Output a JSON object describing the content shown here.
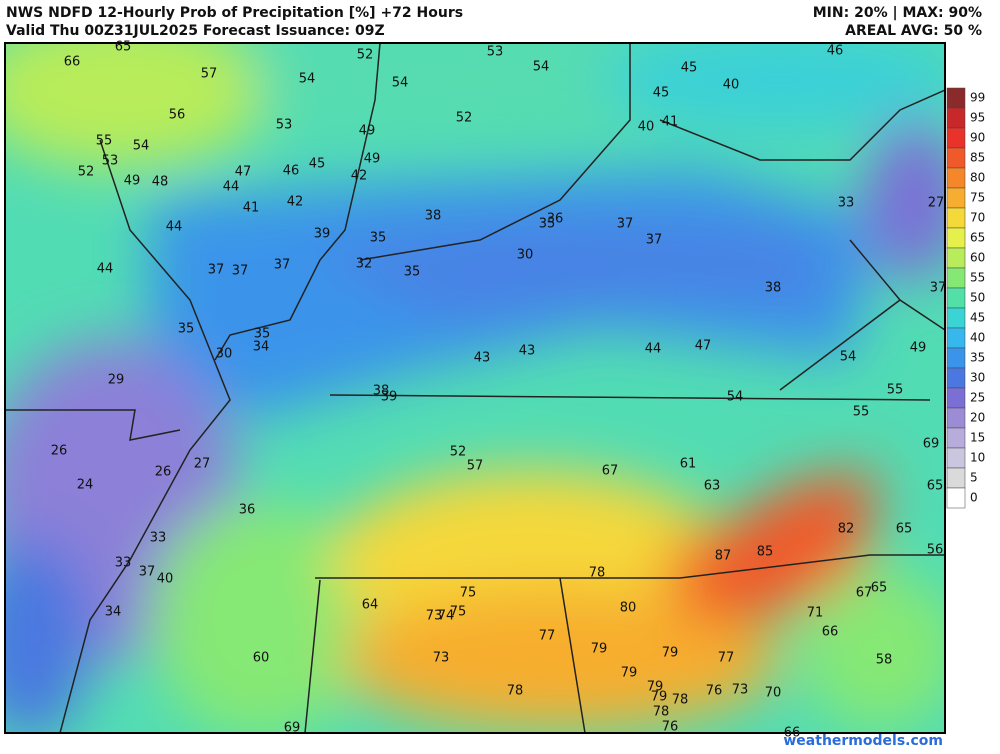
{
  "header": {
    "title_line1": "NWS NDFD 12-Hourly Prob of Precipitation [%] +72 Hours",
    "title_line2": "Valid Thu 00Z31JUL2025   Forecast Issuance: 09Z",
    "stats_line1": "MIN: 20% | MAX: 90%",
    "stats_line2": "AREAL AVG: 50 %"
  },
  "map_labels": [
    65,
    66,
    57,
    54,
    52,
    54,
    53,
    54,
    45,
    46,
    56,
    53,
    49,
    52,
    45,
    40,
    40,
    41,
    55,
    54,
    53,
    52,
    49,
    48,
    47,
    44,
    46,
    45,
    49,
    42,
    41,
    42,
    38,
    36,
    35,
    37,
    37,
    33,
    27,
    44,
    39,
    35,
    32,
    35,
    30,
    44,
    37,
    37,
    37,
    38,
    37,
    35,
    35,
    34,
    30,
    43,
    43,
    44,
    47,
    54,
    49,
    29,
    38,
    39,
    54,
    55,
    55,
    26,
    52,
    57,
    67,
    61,
    69,
    26,
    27,
    24,
    63,
    65,
    36,
    33,
    82,
    65,
    33,
    37,
    40,
    87,
    85,
    56,
    78,
    75,
    64,
    73,
    74,
    75,
    80,
    65,
    67,
    34,
    71,
    77,
    66,
    79,
    79,
    73,
    77,
    60,
    58,
    79,
    79,
    78,
    78,
    76,
    73,
    70,
    79,
    78,
    69,
    76,
    66
  ],
  "colorbar": {
    "levels": [
      99,
      95,
      90,
      85,
      80,
      75,
      70,
      65,
      60,
      55,
      50,
      45,
      40,
      35,
      30,
      25,
      20,
      15,
      10,
      5,
      0
    ],
    "colors": [
      "#8b2a2a",
      "#c8282a",
      "#e8322a",
      "#f05a2a",
      "#f5872a",
      "#f7ad2f",
      "#f5d83a",
      "#e6f04a",
      "#b8ec5a",
      "#86e874",
      "#52e0a8",
      "#3ad4d4",
      "#36b8ec",
      "#3a94ea",
      "#4a78e0",
      "#7b6fd6",
      "#9c8cd6",
      "#b8acdc",
      "#cac6e0",
      "#dadada",
      "#ffffff"
    ]
  },
  "watermark": "weathermodels.com"
}
